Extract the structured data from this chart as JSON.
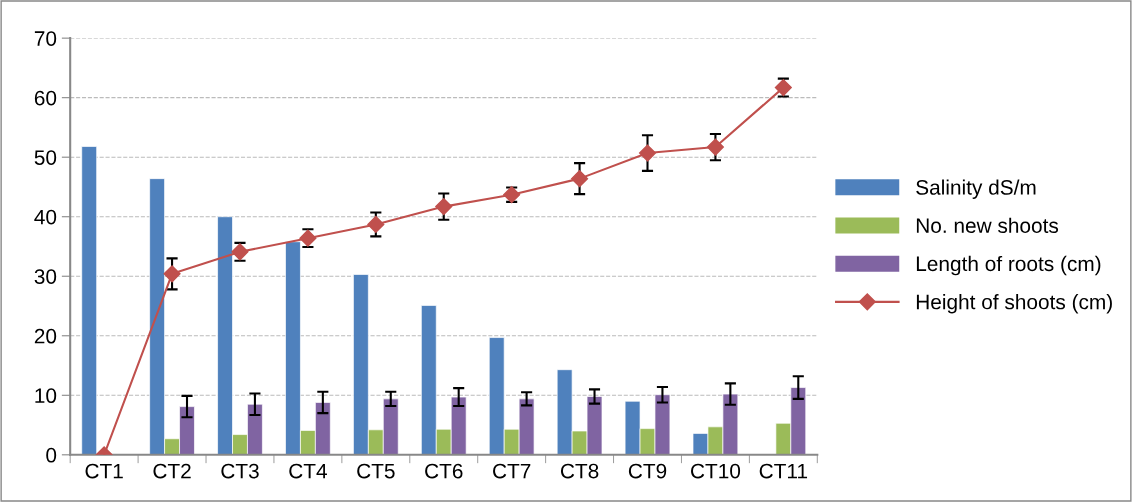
{
  "chart_data": {
    "type": "bar",
    "categories": [
      "CT1",
      "CT2",
      "CT3",
      "CT4",
      "CT5",
      "CT6",
      "CT7",
      "CT8",
      "CT9",
      "CT10",
      "CT11"
    ],
    "series": [
      {
        "name": "Salinity dS/m",
        "color": "#4f81bd",
        "values": [
          51.8,
          46.4,
          40.0,
          35.8,
          30.3,
          25.1,
          19.7,
          14.3,
          9.0,
          3.6,
          null
        ]
      },
      {
        "name": "No. new shoots",
        "color": "#9bbb59",
        "values": [
          null,
          2.7,
          3.4,
          4.1,
          4.2,
          4.3,
          4.3,
          4.0,
          4.4,
          4.7,
          5.3
        ]
      },
      {
        "name": "Length of roots (cm)",
        "color": "#8064a2",
        "values": [
          null,
          8.1,
          8.5,
          8.8,
          9.4,
          9.7,
          9.4,
          9.8,
          10.1,
          10.2,
          11.3
        ],
        "errors": [
          null,
          1.8,
          1.8,
          1.8,
          1.2,
          1.5,
          1.1,
          1.2,
          1.3,
          1.8,
          1.9
        ]
      },
      {
        "name": "Height of shoots (cm)",
        "type": "line",
        "color": "#c0504d",
        "marker": "diamond",
        "values": [
          0,
          30.4,
          34.1,
          36.4,
          38.7,
          41.7,
          43.7,
          46.4,
          50.7,
          51.7,
          61.7
        ],
        "errors": [
          null,
          2.6,
          1.5,
          1.5,
          2.0,
          2.2,
          1.2,
          2.6,
          3.0,
          2.2,
          1.5
        ]
      }
    ],
    "ylim": [
      0,
      70
    ],
    "yticks": [
      0,
      10,
      20,
      30,
      40,
      50,
      60,
      70
    ],
    "grid": "y",
    "legend": "right"
  }
}
